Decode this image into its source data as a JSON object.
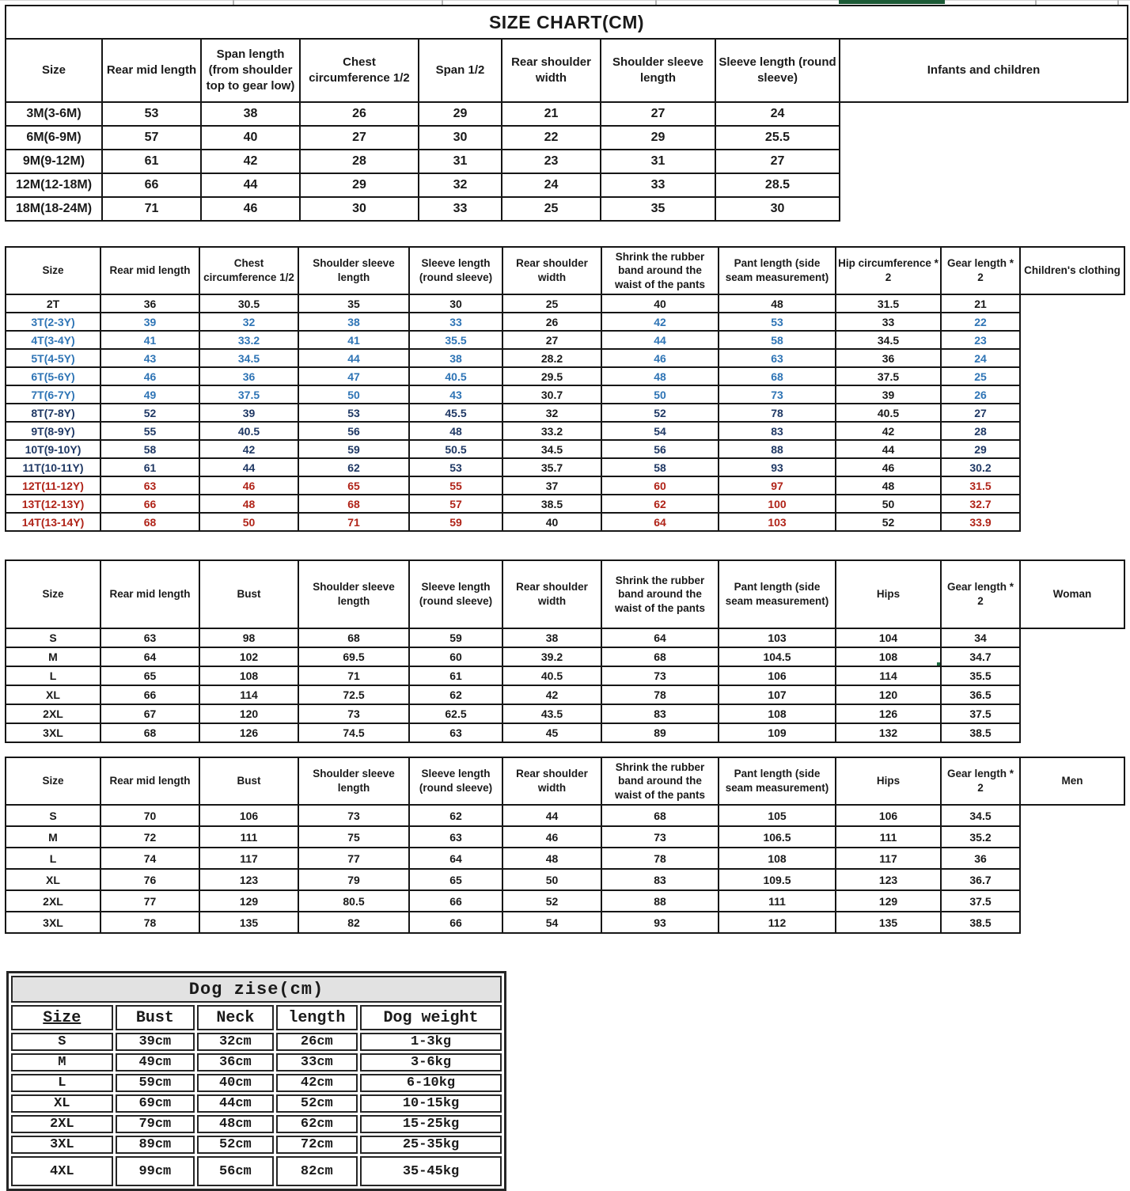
{
  "colors": {
    "black": "#1a1a1a",
    "blue": "#2e74b5",
    "navy": "#1f3864",
    "red": "#b02318",
    "label_red": "#c00000",
    "selection_green": "#1e6b41",
    "top_bar_green": "#1c5a36"
  },
  "size_chart": {
    "title": "SIZE CHART(CM)",
    "infants": {
      "label": "Infants and children",
      "headers": [
        "Size",
        "Rear mid length",
        "Span length (from shoulder top to gear low)",
        "Chest circumference 1/2",
        "Span 1/2",
        "Rear shoulder width",
        "Shoulder sleeve length",
        "Sleeve length (round sleeve)"
      ],
      "rows": [
        [
          "3M(3-6M)",
          "53",
          "38",
          "26",
          "29",
          "21",
          "27",
          "24"
        ],
        [
          "6M(6-9M)",
          "57",
          "40",
          "27",
          "30",
          "22",
          "29",
          "25.5"
        ],
        [
          "9M(9-12M)",
          "61",
          "42",
          "28",
          "31",
          "23",
          "31",
          "27"
        ],
        [
          "12M(12-18M)",
          "66",
          "44",
          "29",
          "32",
          "24",
          "33",
          "28.5"
        ],
        [
          "18M(18-24M)",
          "71",
          "46",
          "30",
          "33",
          "25",
          "35",
          "30"
        ]
      ]
    },
    "children": {
      "label": "Children's clothing",
      "headers": [
        "Size",
        "Rear mid length",
        "Chest circumference 1/2",
        "Shoulder sleeve length",
        "Sleeve length (round sleeve)",
        "Rear shoulder width",
        "Shrink the rubber band around the waist of the pants",
        "Pant length (side seam measurement)",
        "Hip circumference * 2",
        "Gear length * 2"
      ],
      "black_cols": [
        5,
        8
      ],
      "rows": [
        {
          "color": "black",
          "cells": [
            "2T",
            "36",
            "30.5",
            "35",
            "30",
            "25",
            "40",
            "48",
            "31.5",
            "21"
          ]
        },
        {
          "color": "blue",
          "cells": [
            "3T(2-3Y)",
            "39",
            "32",
            "38",
            "33",
            "26",
            "42",
            "53",
            "33",
            "22"
          ]
        },
        {
          "color": "blue",
          "cells": [
            "4T(3-4Y)",
            "41",
            "33.2",
            "41",
            "35.5",
            "27",
            "44",
            "58",
            "34.5",
            "23"
          ]
        },
        {
          "color": "blue",
          "cells": [
            "5T(4-5Y)",
            "43",
            "34.5",
            "44",
            "38",
            "28.2",
            "46",
            "63",
            "36",
            "24"
          ]
        },
        {
          "color": "blue",
          "cells": [
            "6T(5-6Y)",
            "46",
            "36",
            "47",
            "40.5",
            "29.5",
            "48",
            "68",
            "37.5",
            "25"
          ]
        },
        {
          "color": "blue",
          "cells": [
            "7T(6-7Y)",
            "49",
            "37.5",
            "50",
            "43",
            "30.7",
            "50",
            "73",
            "39",
            "26"
          ]
        },
        {
          "color": "navy",
          "cells": [
            "8T(7-8Y)",
            "52",
            "39",
            "53",
            "45.5",
            "32",
            "52",
            "78",
            "40.5",
            "27"
          ]
        },
        {
          "color": "navy",
          "cells": [
            "9T(8-9Y)",
            "55",
            "40.5",
            "56",
            "48",
            "33.2",
            "54",
            "83",
            "42",
            "28"
          ]
        },
        {
          "color": "navy",
          "cells": [
            "10T(9-10Y)",
            "58",
            "42",
            "59",
            "50.5",
            "34.5",
            "56",
            "88",
            "44",
            "29"
          ]
        },
        {
          "color": "navy",
          "cells": [
            "11T(10-11Y)",
            "61",
            "44",
            "62",
            "53",
            "35.7",
            "58",
            "93",
            "46",
            "30.2"
          ]
        },
        {
          "color": "red",
          "cells": [
            "12T(11-12Y)",
            "63",
            "46",
            "65",
            "55",
            "37",
            "60",
            "97",
            "48",
            "31.5"
          ]
        },
        {
          "color": "red",
          "cells": [
            "13T(12-13Y)",
            "66",
            "48",
            "68",
            "57",
            "38.5",
            "62",
            "100",
            "50",
            "32.7"
          ]
        },
        {
          "color": "red",
          "cells": [
            "14T(13-14Y)",
            "68",
            "50",
            "71",
            "59",
            "40",
            "64",
            "103",
            "52",
            "33.9"
          ]
        }
      ]
    },
    "woman": {
      "label": "Woman",
      "headers": [
        "Size",
        "Rear mid length",
        "Bust",
        "Shoulder sleeve length",
        "Sleeve length (round sleeve)",
        "Rear shoulder width",
        "Shrink the rubber band around the waist of the pants",
        "Pant length (side seam measurement)",
        "Hips",
        "Gear length * 2"
      ],
      "rows": [
        {
          "cells": [
            "S",
            "63",
            "98",
            "68",
            "59",
            "38",
            "64",
            "103",
            "104",
            "34"
          ]
        },
        {
          "cells": [
            "M",
            "64",
            "102",
            "69.5",
            "60",
            "39.2",
            "68",
            "104.5",
            "108",
            "34.7"
          ]
        },
        {
          "cells": [
            "L",
            "65",
            "108",
            "71",
            "61",
            "40.5",
            "73",
            "106",
            "114",
            "35.5"
          ]
        },
        {
          "cells": [
            "XL",
            "66",
            "114",
            "72.5",
            "62",
            "42",
            "78",
            "107",
            "120",
            "36.5"
          ]
        },
        {
          "cells": [
            "2XL",
            "67",
            "120",
            "73",
            "62.5",
            "43.5",
            "83",
            "108",
            "126",
            "37.5"
          ]
        },
        {
          "cells": [
            "3XL",
            "68",
            "126",
            "74.5",
            "63",
            "45",
            "89",
            "109",
            "132",
            "38.5"
          ]
        }
      ]
    },
    "men": {
      "label": "Men",
      "headers": [
        "Size",
        "Rear mid length",
        "Bust",
        "Shoulder sleeve length",
        "Sleeve length (round sleeve)",
        "Rear shoulder width",
        "Shrink the rubber band around the waist of the pants",
        "Pant length (side seam measurement)",
        "Hips",
        "Gear length * 2"
      ],
      "rows": [
        {
          "cells": [
            "S",
            "70",
            "106",
            "73",
            "62",
            "44",
            "68",
            "105",
            "106",
            "34.5"
          ]
        },
        {
          "cells": [
            "M",
            "72",
            "111",
            "75",
            "63",
            "46",
            "73",
            "106.5",
            "111",
            "35.2"
          ]
        },
        {
          "cells": [
            "L",
            "74",
            "117",
            "77",
            "64",
            "48",
            "78",
            "108",
            "117",
            "36"
          ]
        },
        {
          "cells": [
            "XL",
            "76",
            "123",
            "79",
            "65",
            "50",
            "83",
            "109.5",
            "123",
            "36.7"
          ]
        },
        {
          "cells": [
            "2XL",
            "77",
            "129",
            "80.5",
            "66",
            "52",
            "88",
            "111",
            "129",
            "37.5"
          ]
        },
        {
          "cells": [
            "3XL",
            "78",
            "135",
            "82",
            "66",
            "54",
            "93",
            "112",
            "135",
            "38.5"
          ]
        }
      ]
    },
    "selection": {
      "table": "woman",
      "row_index": 1,
      "col_index": 8,
      "row_label": "M",
      "column_label": "Hips"
    }
  },
  "dog_chart": {
    "title": "Dog zise(cm)",
    "headers": [
      "Size",
      "Bust",
      "Neck",
      "length",
      "Dog weight"
    ],
    "rows": [
      {
        "cells": [
          "S",
          "39cm",
          "32cm",
          "26cm",
          "1-3kg"
        ]
      },
      {
        "cells": [
          "M",
          "49cm",
          "36cm",
          "33cm",
          "3-6kg"
        ]
      },
      {
        "cells": [
          "L",
          "59cm",
          "40cm",
          "42cm",
          "6-10kg"
        ]
      },
      {
        "cells": [
          "XL",
          "69cm",
          "44cm",
          "52cm",
          "10-15kg"
        ]
      },
      {
        "cells": [
          "2XL",
          "79cm",
          "48cm",
          "62cm",
          "15-25kg"
        ]
      },
      {
        "cells": [
          "3XL",
          "89cm",
          "52cm",
          "72cm",
          "25-35kg"
        ]
      },
      {
        "cells": [
          "4XL",
          "99cm",
          "56cm",
          "82cm",
          "35-45kg"
        ]
      }
    ]
  }
}
